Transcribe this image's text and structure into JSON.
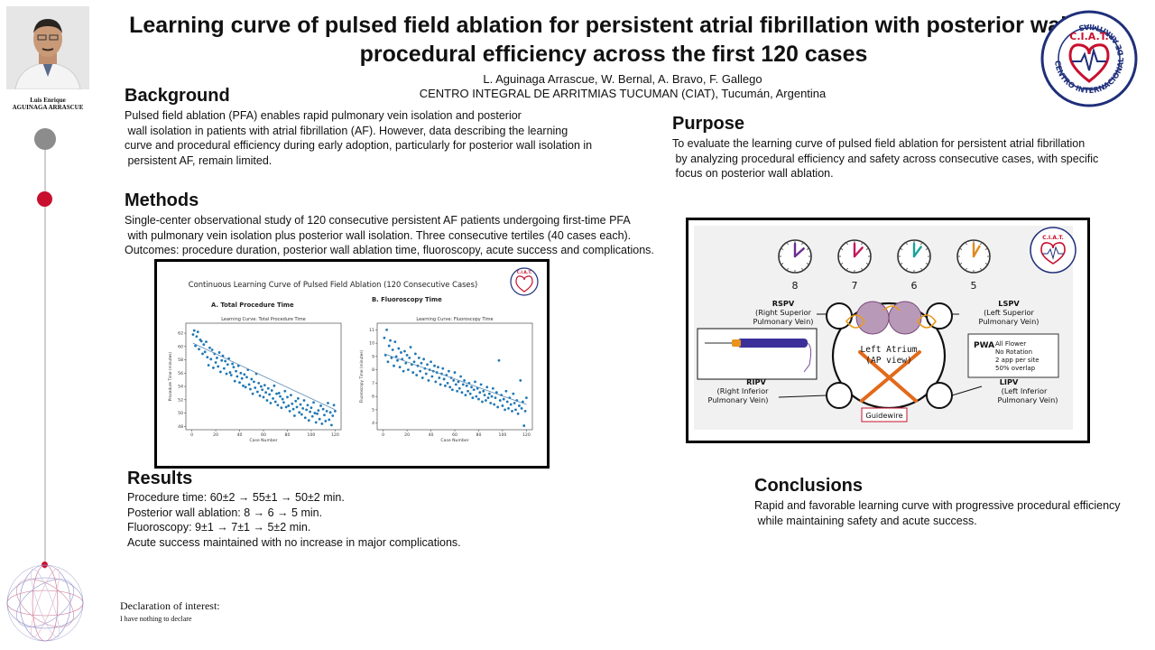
{
  "title": {
    "line1": "Learning curve of pulsed field ablation for persistent atrial fibrillation with posterior wall is",
    "line2": "procedural efficiency across the first 120 cases"
  },
  "authors": "L. Aguinaga Arrascue, W. Bernal, A. Bravo, F. Gallego",
  "affiliation": "CENTRO INTEGRAL DE ARRITMIAS TUCUMAN (CIAT), Tucumán, Argentina",
  "presenter": {
    "first": "Luis Enrique",
    "last": "AGUINAGA ARRASCUE"
  },
  "logo": {
    "text": "C.I.A.T.",
    "ring": "CENTRO INTERNACIONAL DE ARRITMIAS",
    "color": "#1f2f7a"
  },
  "background": {
    "heading": "Background",
    "lines": [
      "Pulsed field ablation (PFA) enables rapid pulmonary vein isolation and posterior",
      " wall isolation in patients with atrial fibrillation (AF). However, data describing the learning",
      "curve and procedural efficiency during early adoption, particularly for posterior wall isolation in",
      " persistent AF, remain limited."
    ]
  },
  "purpose": {
    "heading": "Purpose",
    "lines": [
      "To evaluate the learning curve of pulsed field ablation for persistent atrial fibrillation",
      " by analyzing procedural efficiency and safety across consecutive cases, with specific",
      " focus on posterior wall ablation."
    ]
  },
  "methods": {
    "heading": "Methods",
    "lines": [
      "Single-center observational study of 120 consecutive persistent AF patients undergoing first-time PFA",
      " with pulmonary vein isolation plus posterior wall isolation. Three consecutive tertiles (40 cases each).",
      "Outcomes: procedure duration, posterior wall ablation time, fluoroscopy, acute success and complications."
    ]
  },
  "results": {
    "heading": "Results",
    "lines": [
      "Procedure time: 60±2 → 55±1 → 50±2 min.",
      "Posterior wall ablation: 8 → 6 → 5 min.",
      "Fluoroscopy: 9±1 → 7±1 → 5±2 min.",
      "Acute success maintained with no increase in major complications."
    ]
  },
  "conclusions": {
    "heading": "Conclusions",
    "lines": [
      "Rapid and favorable learning curve with progressive procedural efficiency",
      " while maintaining safety and acute success."
    ]
  },
  "declaration": {
    "heading": "Declaration of interest:",
    "text": "I have nothing to declare"
  },
  "chart_data": [
    {
      "type": "scatter",
      "figure_title": "Continuous Learning Curve of Pulsed Field Ablation (120 Consecutive Cases)",
      "panel": "A. Total Procedure Time",
      "title": "Learning Curve: Total Procedure Time",
      "xlabel": "Case Number",
      "ylabel": "Procedure Time (minutes)",
      "xlim": [
        -5,
        125
      ],
      "ylim": [
        47.5,
        63.5
      ],
      "xticks": [
        0,
        20,
        40,
        60,
        80,
        100,
        120
      ],
      "yticks": [
        48,
        50,
        52,
        54,
        56,
        58,
        60,
        62
      ],
      "color": "#1f77b4",
      "trend": [
        [
          1,
          60.5
        ],
        [
          120,
          50.5
        ]
      ],
      "x": [
        1,
        2,
        3,
        4,
        5,
        6,
        7,
        8,
        9,
        10,
        11,
        12,
        13,
        14,
        15,
        16,
        17,
        18,
        19,
        20,
        21,
        22,
        23,
        24,
        25,
        26,
        27,
        28,
        29,
        30,
        31,
        32,
        33,
        34,
        35,
        36,
        37,
        38,
        39,
        40,
        41,
        42,
        43,
        44,
        45,
        46,
        47,
        48,
        49,
        50,
        51,
        52,
        53,
        54,
        55,
        56,
        57,
        58,
        59,
        60,
        61,
        62,
        63,
        64,
        65,
        66,
        67,
        68,
        69,
        70,
        71,
        72,
        73,
        74,
        75,
        76,
        77,
        78,
        79,
        80,
        81,
        82,
        83,
        84,
        85,
        86,
        87,
        88,
        89,
        90,
        91,
        92,
        93,
        94,
        95,
        96,
        97,
        98,
        99,
        100,
        101,
        102,
        103,
        104,
        105,
        106,
        107,
        108,
        109,
        110,
        111,
        112,
        113,
        114,
        115,
        116,
        117,
        118,
        119,
        120
      ],
      "y": [
        61.8,
        62.4,
        60.1,
        61.5,
        62.2,
        59.6,
        61.0,
        60.8,
        58.9,
        60.3,
        59.2,
        60.7,
        58.4,
        57.2,
        59.8,
        58.1,
        59.5,
        56.8,
        58.9,
        57.6,
        58.3,
        57.0,
        59.1,
        56.2,
        57.9,
        58.6,
        56.7,
        57.8,
        55.9,
        57.3,
        58.2,
        56.1,
        55.7,
        57.4,
        56.9,
        54.8,
        56.3,
        55.5,
        57.1,
        54.6,
        56.0,
        55.2,
        54.1,
        55.8,
        53.9,
        55.4,
        56.5,
        54.3,
        53.6,
        55.1,
        52.9,
        54.7,
        53.8,
        55.9,
        53.2,
        54.5,
        52.6,
        54.0,
        53.5,
        52.4,
        54.2,
        53.1,
        51.9,
        53.7,
        52.8,
        51.5,
        53.4,
        52.2,
        54.1,
        51.7,
        52.9,
        51.2,
        53.0,
        52.5,
        50.8,
        52.1,
        51.6,
        53.3,
        50.9,
        52.4,
        51.1,
        50.3,
        52.7,
        51.4,
        50.6,
        49.6,
        51.8,
        50.9,
        52.2,
        50.1,
        51.3,
        49.8,
        50.7,
        51.9,
        49.3,
        50.5,
        51.2,
        48.9,
        50.2,
        50.8,
        49.5,
        51.6,
        50.0,
        48.6,
        49.9,
        50.4,
        49.1,
        51.1,
        48.4,
        50.6,
        49.7,
        48.8,
        50.3,
        51.5,
        49.0,
        50.1,
        48.2,
        49.6,
        51.2,
        50.3
      ]
    },
    {
      "type": "scatter",
      "panel": "B. Fluoroscopy Time",
      "title": "Learning Curve: Fluoroscopy Time",
      "xlabel": "Case Number",
      "ylabel": "Fluoroscopy Time (minutes)",
      "xlim": [
        -5,
        125
      ],
      "ylim": [
        3.5,
        11.5
      ],
      "xticks": [
        0,
        20,
        40,
        60,
        80,
        100,
        120
      ],
      "yticks": [
        4,
        5,
        6,
        7,
        8,
        9,
        10,
        11
      ],
      "color": "#1f77b4",
      "trend": [
        [
          1,
          9.2
        ],
        [
          120,
          5.4
        ]
      ],
      "x": [
        1,
        2,
        3,
        4,
        5,
        6,
        7,
        8,
        9,
        10,
        11,
        12,
        13,
        14,
        15,
        16,
        17,
        18,
        19,
        20,
        21,
        22,
        23,
        24,
        25,
        26,
        27,
        28,
        29,
        30,
        31,
        32,
        33,
        34,
        35,
        36,
        37,
        38,
        39,
        40,
        41,
        42,
        43,
        44,
        45,
        46,
        47,
        48,
        49,
        50,
        51,
        52,
        53,
        54,
        55,
        56,
        57,
        58,
        59,
        60,
        61,
        62,
        63,
        64,
        65,
        66,
        67,
        68,
        69,
        70,
        71,
        72,
        73,
        74,
        75,
        76,
        77,
        78,
        79,
        80,
        81,
        82,
        83,
        84,
        85,
        86,
        87,
        88,
        89,
        90,
        91,
        92,
        93,
        94,
        95,
        96,
        97,
        98,
        99,
        100,
        101,
        102,
        103,
        104,
        105,
        106,
        107,
        108,
        109,
        110,
        111,
        112,
        113,
        114,
        115,
        116,
        117,
        118,
        119,
        120
      ],
      "y": [
        10.4,
        9.1,
        11.0,
        8.6,
        9.8,
        10.2,
        8.9,
        9.5,
        8.3,
        10.1,
        9.0,
        8.7,
        9.6,
        8.2,
        9.3,
        8.8,
        7.9,
        9.4,
        8.5,
        9.1,
        8.0,
        8.9,
        9.7,
        8.4,
        7.8,
        8.6,
        9.2,
        7.6,
        8.3,
        8.9,
        7.9,
        8.5,
        7.4,
        8.8,
        8.1,
        7.7,
        8.4,
        7.2,
        8.0,
        8.6,
        7.5,
        7.9,
        8.3,
        7.1,
        7.8,
        8.2,
        7.4,
        6.9,
        7.7,
        8.1,
        7.3,
        6.8,
        7.6,
        7.0,
        7.9,
        6.7,
        7.4,
        6.5,
        7.2,
        7.8,
        6.9,
        6.4,
        7.1,
        6.6,
        7.5,
        6.3,
        6.9,
        7.2,
        6.1,
        6.8,
        6.4,
        7.0,
        6.2,
        6.7,
        5.9,
        6.5,
        7.1,
        6.0,
        6.6,
        5.8,
        6.3,
        6.9,
        5.6,
        6.4,
        6.1,
        5.7,
        6.7,
        5.9,
        6.2,
        5.5,
        6.0,
        6.6,
        5.4,
        5.9,
        6.3,
        5.2,
        8.7,
        5.7,
        6.1,
        5.3,
        5.8,
        5.0,
        6.4,
        5.6,
        5.1,
        5.9,
        5.4,
        4.9,
        6.2,
        5.5,
        5.0,
        5.7,
        4.7,
        5.3,
        7.2,
        5.1,
        5.6,
        3.8,
        4.9,
        5.9
      ]
    }
  ],
  "diagram": {
    "clocks": [
      "8",
      "7",
      "6",
      "5"
    ],
    "clock_colors": [
      "#6b2c91",
      "#c2185b",
      "#1aa39a",
      "#e08a1e"
    ],
    "rspv": [
      "RSPV",
      "(Right Superior",
      "Pulmonary Vein)"
    ],
    "lspv": [
      "LSPV",
      "(Left Superior",
      "Pulmonary Vein)"
    ],
    "ripv": [
      "RIPV",
      "(Right Inferior",
      "Pulmonary Vein)"
    ],
    "lipv": [
      "LIPV",
      "(Left Inferior",
      "Pulmonary Vein)"
    ],
    "atrium": [
      "Left Atrium",
      "(AP view)"
    ],
    "guidewire": "Guidewire",
    "pwa": {
      "label": "PWA",
      "lines": [
        "All Flower",
        "No Rotation",
        "2 app per site",
        "50% overlap"
      ]
    }
  }
}
